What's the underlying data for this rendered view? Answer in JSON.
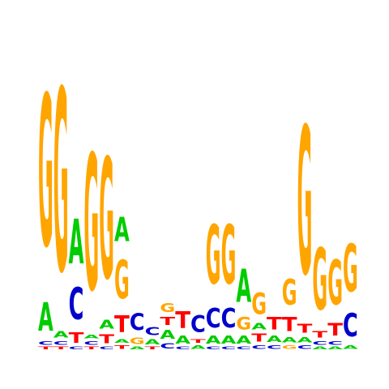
{
  "colors": {
    "A": "#00CC00",
    "C": "#0000CC",
    "G": "#FFA500",
    "T": "#FF0000",
    "background": "#ffffff"
  },
  "logo": {
    "columns": [
      {
        "position": 1,
        "letters": [
          {
            "base": "T",
            "bits": 0.02
          },
          {
            "base": "C",
            "bits": 0.03
          },
          {
            "base": "A",
            "bits": 0.22
          },
          {
            "base": "G",
            "bits": 1.18
          }
        ]
      },
      {
        "position": 2,
        "letters": [
          {
            "base": "T",
            "bits": 0.02
          },
          {
            "base": "C",
            "bits": 0.03
          },
          {
            "base": "A",
            "bits": 0.05
          },
          {
            "base": "G",
            "bits": 1.42
          }
        ]
      },
      {
        "position": 3,
        "letters": [
          {
            "base": "C",
            "bits": 0.02
          },
          {
            "base": "T",
            "bits": 0.08
          },
          {
            "base": "C",
            "bits": 0.25
          },
          {
            "base": "A",
            "bits": 0.35
          }
        ]
      },
      {
        "position": 4,
        "letters": [
          {
            "base": "T",
            "bits": 0.02
          },
          {
            "base": "C",
            "bits": 0.03
          },
          {
            "base": "A",
            "bits": 0.03
          },
          {
            "base": "G",
            "bits": 1.06
          }
        ]
      },
      {
        "position": 5,
        "letters": [
          {
            "base": "C",
            "bits": 0.02
          },
          {
            "base": "T",
            "bits": 0.07
          },
          {
            "base": "A",
            "bits": 0.07
          },
          {
            "base": "G",
            "bits": 0.94
          }
        ]
      },
      {
        "position": 6,
        "letters": [
          {
            "base": "T",
            "bits": 0.03
          },
          {
            "base": "A",
            "bits": 0.03
          },
          {
            "base": "T",
            "bits": 0.13
          },
          {
            "base": "G",
            "bits": 0.3
          },
          {
            "base": "A",
            "bits": 0.19
          }
        ]
      },
      {
        "position": 7,
        "letters": [
          {
            "base": "A",
            "bits": 0.02
          },
          {
            "base": "G",
            "bits": 0.05
          },
          {
            "base": "C",
            "bits": 0.13
          }
        ]
      },
      {
        "position": 8,
        "letters": [
          {
            "base": "T",
            "bits": 0.02
          },
          {
            "base": "A",
            "bits": 0.04
          },
          {
            "base": "C",
            "bits": 0.06
          }
        ]
      },
      {
        "position": 9,
        "letters": [
          {
            "base": "C",
            "bits": 0.04
          },
          {
            "base": "A",
            "bits": 0.07
          },
          {
            "base": "T",
            "bits": 0.06
          },
          {
            "base": "G",
            "bits": 0.07
          }
        ]
      },
      {
        "position": 10,
        "letters": [
          {
            "base": "C",
            "bits": 0.02
          },
          {
            "base": "A",
            "bits": 0.06
          },
          {
            "base": "T",
            "bits": 0.13
          }
        ]
      },
      {
        "position": 11,
        "letters": [
          {
            "base": "A",
            "bits": 0.03
          },
          {
            "base": "T",
            "bits": 0.03
          },
          {
            "base": "C",
            "bits": 0.13
          }
        ]
      },
      {
        "position": 12,
        "letters": [
          {
            "base": "C",
            "bits": 0.02
          },
          {
            "base": "A",
            "bits": 0.06
          },
          {
            "base": "C",
            "bits": 0.15
          },
          {
            "base": "G",
            "bits": 0.46
          }
        ]
      },
      {
        "position": 13,
        "letters": [
          {
            "base": "C",
            "bits": 0.02
          },
          {
            "base": "A",
            "bits": 0.06
          },
          {
            "base": "C",
            "bits": 0.15
          },
          {
            "base": "G",
            "bits": 0.46
          }
        ]
      },
      {
        "position": 14,
        "letters": [
          {
            "base": "C",
            "bits": 0.02
          },
          {
            "base": "A",
            "bits": 0.06
          },
          {
            "base": "G",
            "bits": 0.1
          },
          {
            "base": "A",
            "bits": 0.26
          }
        ]
      },
      {
        "position": 15,
        "letters": [
          {
            "base": "C",
            "bits": 0.03
          },
          {
            "base": "T",
            "bits": 0.06
          },
          {
            "base": "A",
            "bits": 0.05
          },
          {
            "base": "G",
            "bits": 0.17
          }
        ]
      },
      {
        "position": 16,
        "letters": [
          {
            "base": "C",
            "bits": 0.03
          },
          {
            "base": "A",
            "bits": 0.05
          },
          {
            "base": "T",
            "bits": 0.1
          }
        ]
      },
      {
        "position": 17,
        "letters": [
          {
            "base": "G",
            "bits": 0.03
          },
          {
            "base": "A",
            "bits": 0.04
          },
          {
            "base": "T",
            "bits": 0.11
          },
          {
            "base": "G",
            "bits": 0.2
          }
        ]
      },
      {
        "position": 18,
        "letters": [
          {
            "base": "C",
            "bits": 0.03
          },
          {
            "base": "A",
            "bits": 0.04
          },
          {
            "base": "T",
            "bits": 0.07
          },
          {
            "base": "G",
            "bits": 1.15
          }
        ]
      },
      {
        "position": 19,
        "letters": [
          {
            "base": "A",
            "bits": 0.02
          },
          {
            "base": "C",
            "bits": 0.03
          },
          {
            "base": "T",
            "bits": 0.05
          },
          {
            "base": "G",
            "bits": 0.48
          }
        ]
      },
      {
        "position": 20,
        "letters": [
          {
            "base": "A",
            "bits": 0.02
          },
          {
            "base": "C",
            "bits": 0.03
          },
          {
            "base": "T",
            "bits": 0.1
          },
          {
            "base": "G",
            "bits": 0.35
          }
        ]
      },
      {
        "position": 21,
        "letters": [
          {
            "base": "A",
            "bits": 0.03
          },
          {
            "base": "C",
            "bits": 0.18
          },
          {
            "base": "G",
            "bits": 0.37
          }
        ]
      }
    ]
  }
}
